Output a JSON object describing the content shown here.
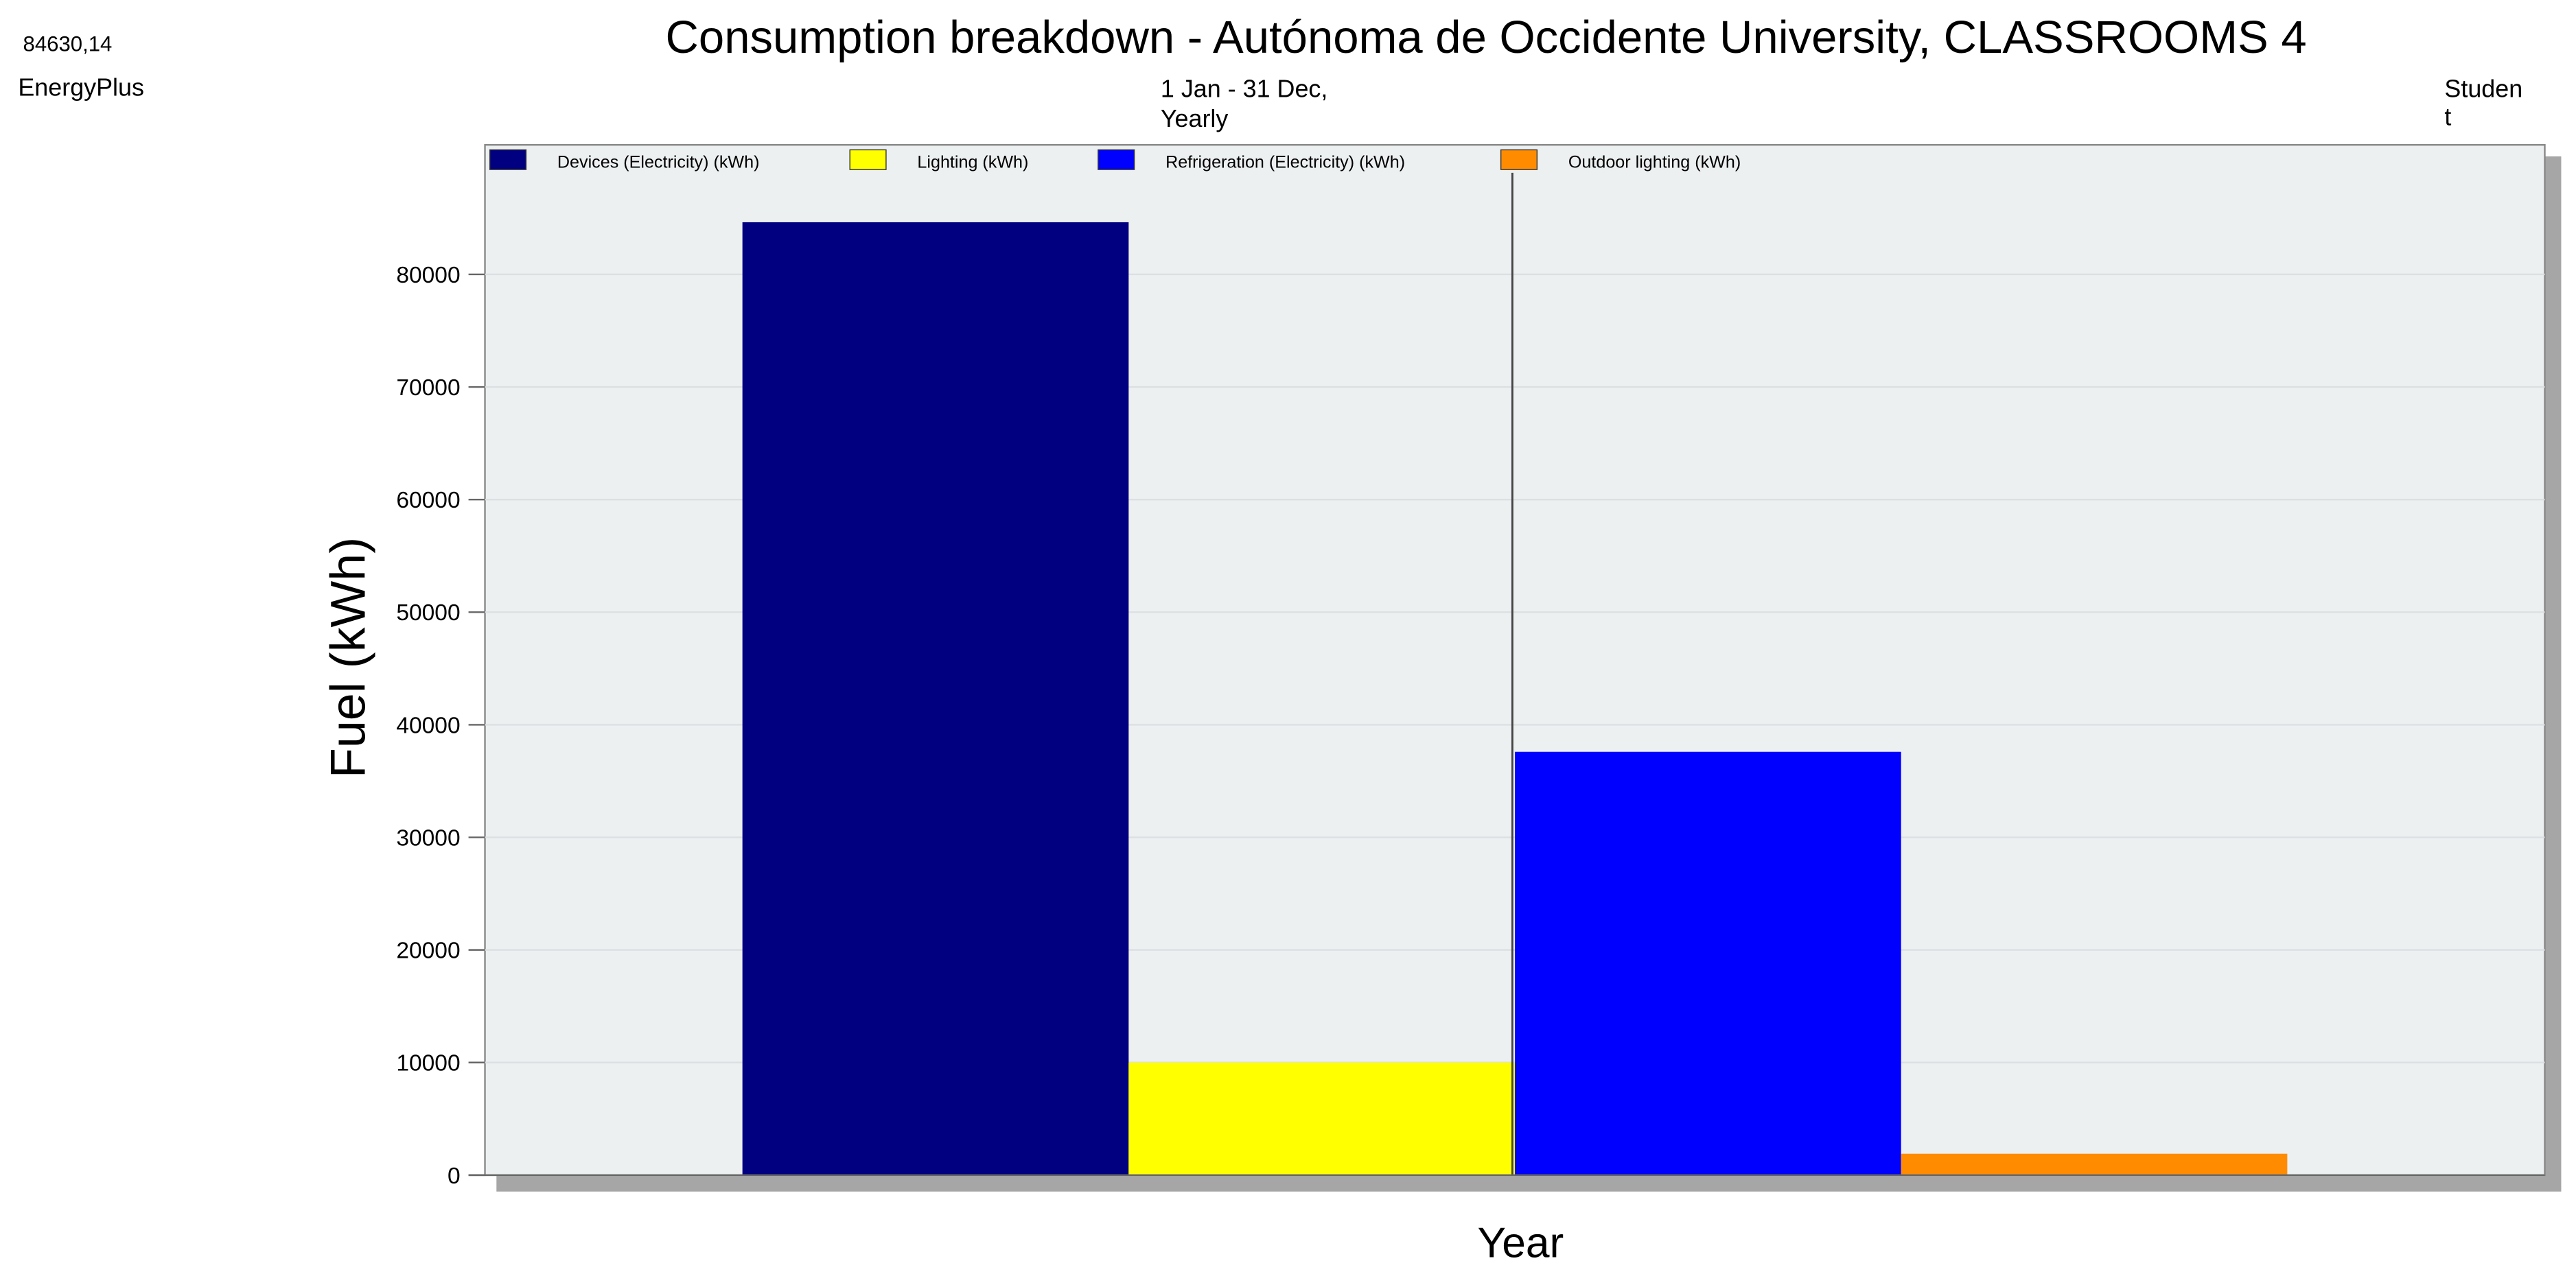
{
  "chart_data": {
    "type": "bar",
    "title": "Consumption breakdown - Autónoma de Occidente University, CLASSROOMS 4",
    "subtitle": [
      "1 Jan - 31 Dec,",
      "Yearly"
    ],
    "source": "EnergyPlus",
    "corner_label": [
      "Studen",
      "t"
    ],
    "y_label": "Fuel (kWh)",
    "x_label": "Year",
    "categories": [
      "Year"
    ],
    "series": [
      {
        "name": "Devices (Electricity) (kWh)",
        "color": "#000080",
        "values": [
          84630.14
        ],
        "value_labels": [
          "84630,14"
        ]
      },
      {
        "name": "Lighting (kWh)",
        "color": "#ffff00",
        "values": [
          10000
        ]
      },
      {
        "name": "Refrigeration (Electricity) (kWh)",
        "color": "#0000ff",
        "values": [
          37600
        ]
      },
      {
        "name": "Outdoor lighting (kWh)",
        "color": "#ff8c00",
        "values": [
          1900
        ]
      }
    ],
    "ylim": [
      0,
      91500
    ],
    "yticks": [
      0,
      10000,
      20000,
      30000,
      40000,
      50000,
      60000,
      70000,
      80000
    ],
    "grid": true
  }
}
